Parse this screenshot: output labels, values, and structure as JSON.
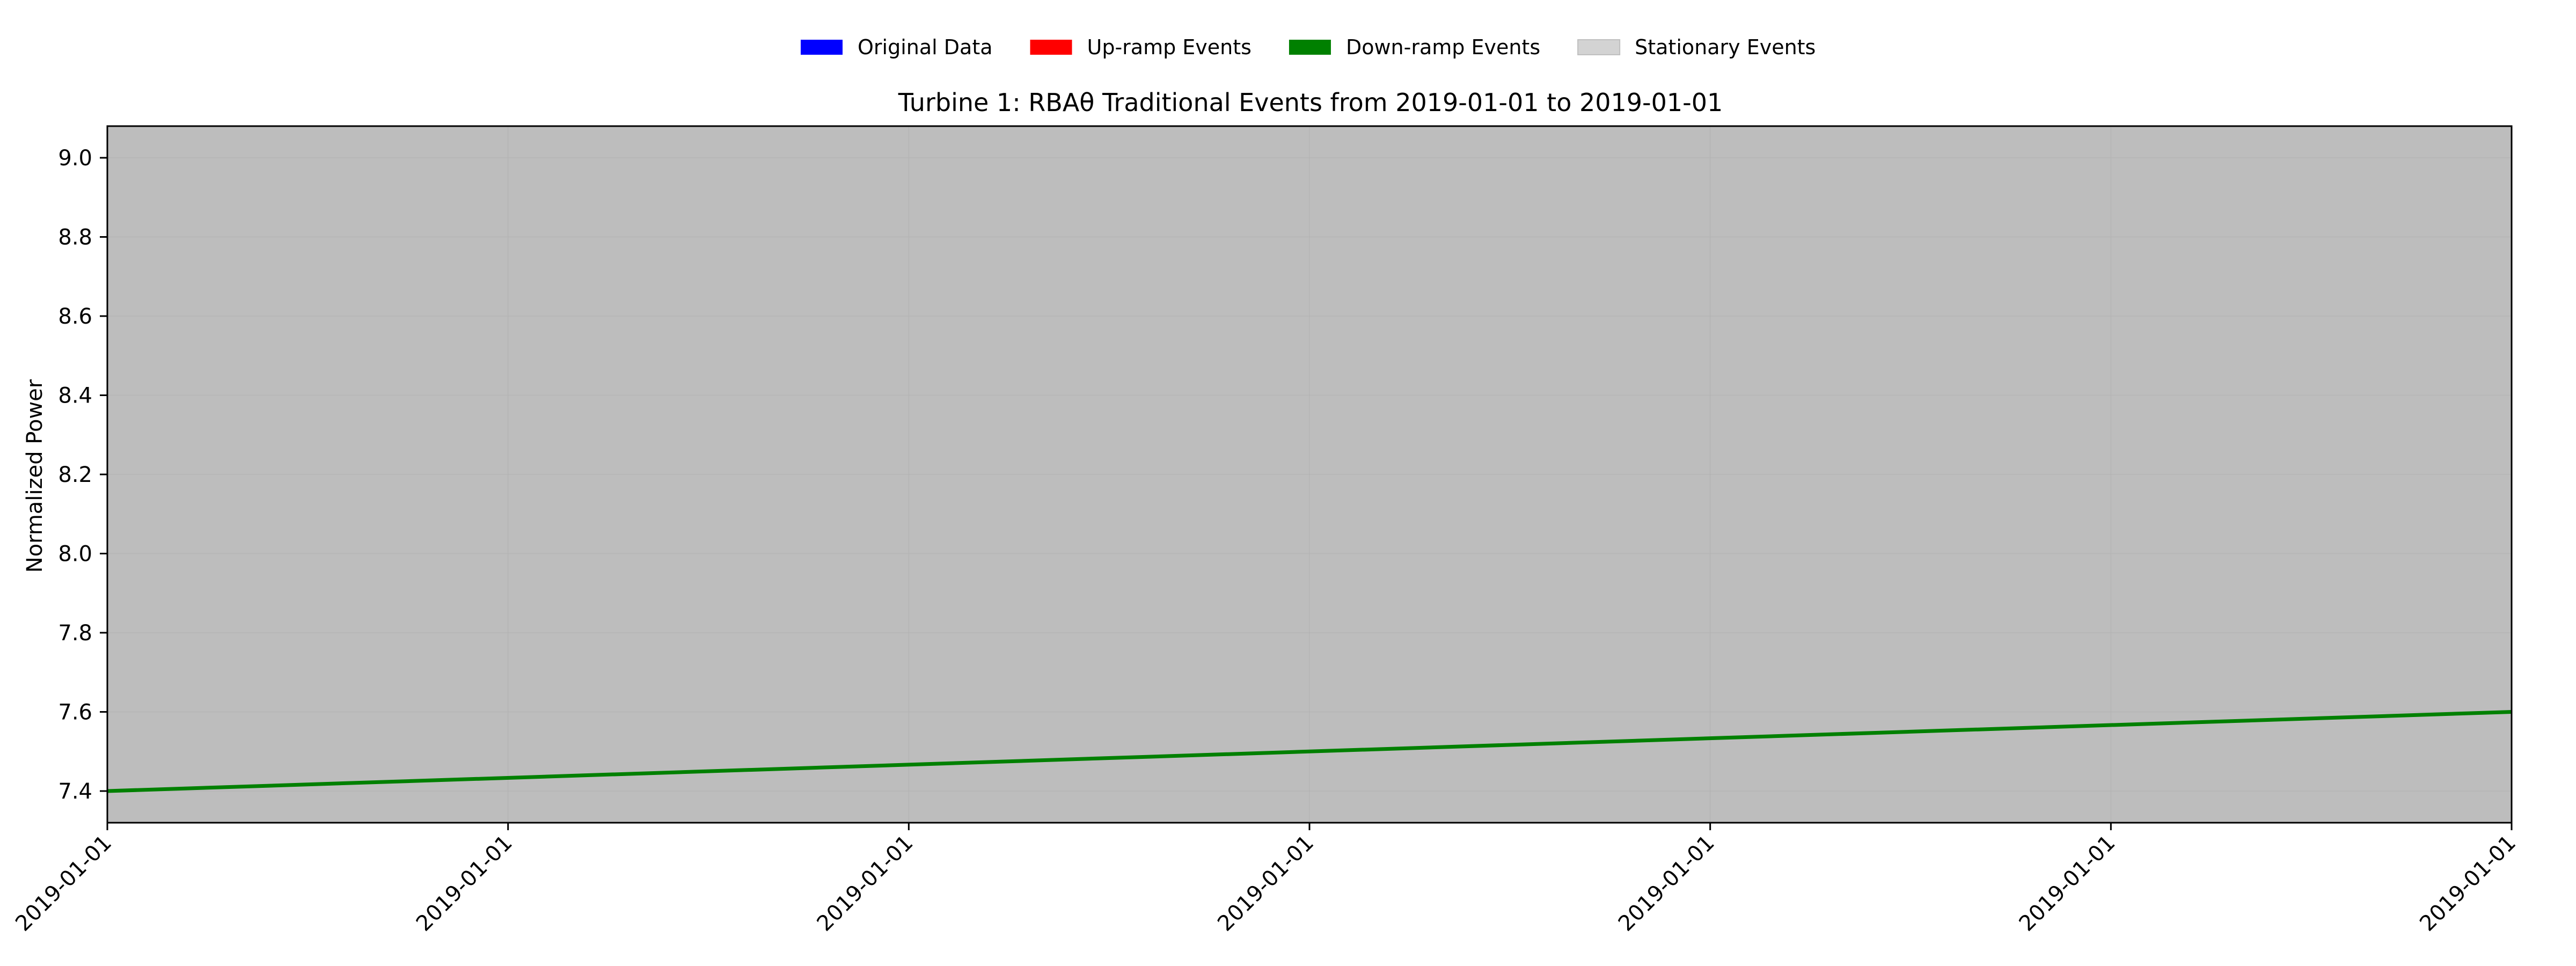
{
  "chart_data": {
    "type": "line",
    "title": "Turbine 1: RBAθ Traditional Events from 2019-01-01 to 2019-01-01",
    "xlabel": "",
    "ylabel": "Normalized Power",
    "x_tick_labels": [
      "2019-01-01",
      "2019-01-01",
      "2019-01-01",
      "2019-01-01",
      "2019-01-01",
      "2019-01-01",
      "2019-01-01"
    ],
    "x": [
      0,
      1,
      2,
      3,
      4,
      5,
      6
    ],
    "xlim": [
      0,
      6
    ],
    "yticks": [
      7.4,
      7.6,
      7.8,
      8.0,
      8.2,
      8.4,
      8.6,
      8.8,
      9.0
    ],
    "ylim": [
      7.32,
      9.08
    ],
    "grid": true,
    "legend_placement": "top-center",
    "legend": [
      {
        "label": "Original Data",
        "color": "#0000ff"
      },
      {
        "label": "Up-ramp Events",
        "color": "#ff0000"
      },
      {
        "label": "Down-ramp Events",
        "color": "#008000"
      },
      {
        "label": "Stationary Events",
        "color": "#d3d3d3"
      }
    ],
    "stationary_band": {
      "x_from": 0,
      "x_to": 6,
      "color": "#bdbdbd"
    },
    "series": [
      {
        "name": "Down-ramp Events",
        "color": "#008000",
        "points": [
          [
            0,
            7.4
          ],
          [
            6,
            7.6
          ]
        ]
      }
    ]
  }
}
